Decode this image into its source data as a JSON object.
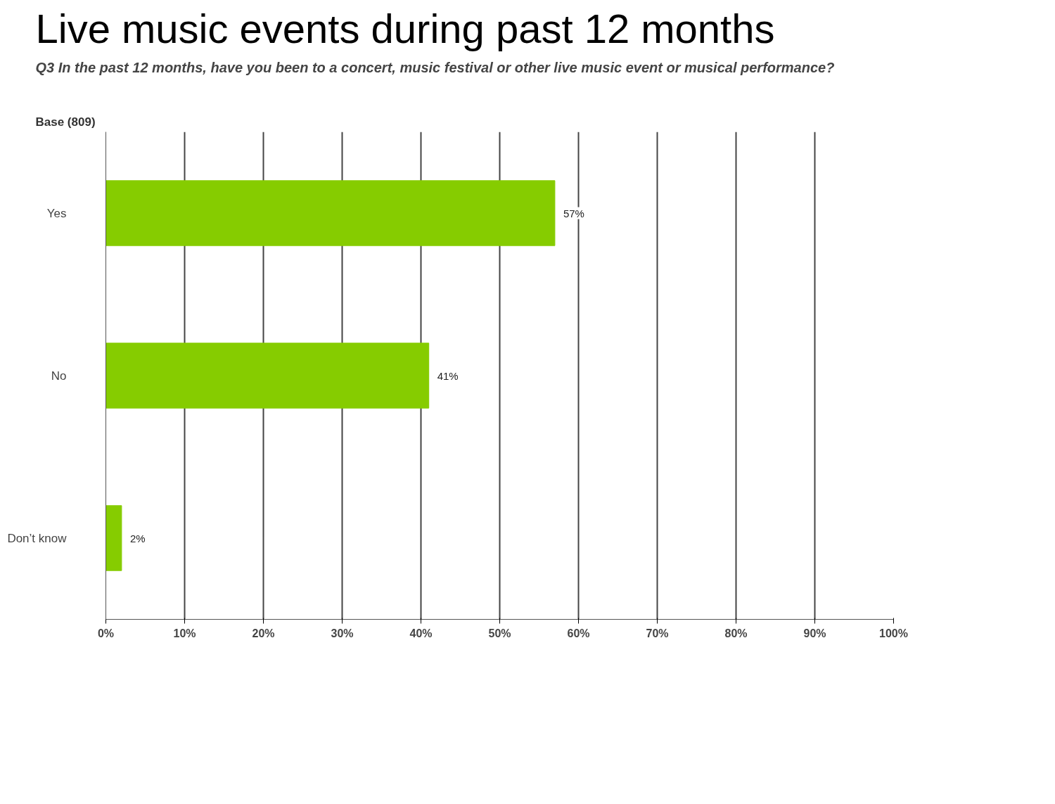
{
  "chart_data": {
    "type": "bar",
    "orientation": "horizontal",
    "title": "Live music events during past 12 months",
    "subtitle": "Q3 In the past 12 months, have you been to a concert, music festival or other live music event or musical performance?",
    "annotations": [
      "Base (809)"
    ],
    "categories": [
      "Yes",
      "No",
      "Don’t know"
    ],
    "values": [
      57,
      41,
      2
    ],
    "value_labels": [
      "57%",
      "41%",
      "2%"
    ],
    "color": "#86cc00",
    "xlim": [
      0,
      100
    ],
    "xticks": [
      {
        "value": 0,
        "label": "0%"
      },
      {
        "value": 10,
        "label": "10%"
      },
      {
        "value": 20,
        "label": "20%"
      },
      {
        "value": 30,
        "label": "30%"
      },
      {
        "value": 40,
        "label": "40%"
      },
      {
        "value": 50,
        "label": "50%"
      },
      {
        "value": 60,
        "label": "60%"
      },
      {
        "value": 70,
        "label": "70%"
      },
      {
        "value": 80,
        "label": "80%"
      },
      {
        "value": 90,
        "label": "90%"
      },
      {
        "value": 100,
        "label": "100%"
      }
    ],
    "grid": "x"
  }
}
